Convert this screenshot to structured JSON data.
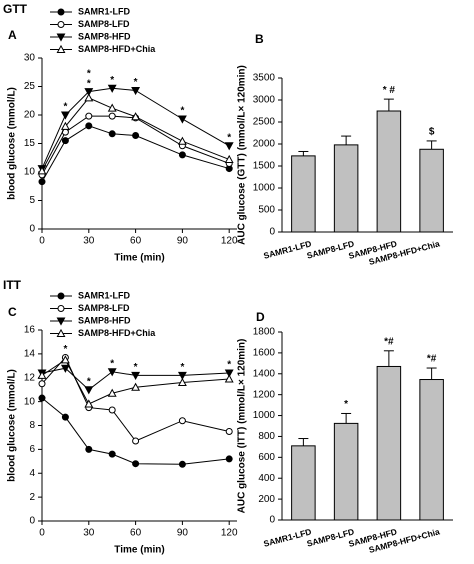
{
  "headings": [
    "GTT",
    "ITT"
  ],
  "chart_data": [
    {
      "type": "line",
      "panel": "A",
      "x_label": "Time (min)",
      "y_label": "blood glucose (mmol/L)",
      "x": [
        0,
        15,
        30,
        45,
        60,
        90,
        120
      ],
      "xlim": [
        0,
        125
      ],
      "xticks": [
        0,
        30,
        60,
        90,
        120
      ],
      "ylim": [
        0,
        30
      ],
      "yticks": [
        0,
        5,
        10,
        15,
        20,
        25,
        30
      ],
      "legend": "upper left",
      "series": [
        {
          "name": "SAMR1-LFD",
          "color": "#000000",
          "marker": "circle",
          "filled": true,
          "values": [
            8.3,
            15.5,
            18.1,
            16.7,
            16.4,
            13.0,
            10.6
          ]
        },
        {
          "name": "SAMP8-LFD",
          "color": "#000000",
          "marker": "circle",
          "filled": false,
          "values": [
            9.5,
            17.0,
            19.8,
            19.8,
            19.5,
            14.6,
            11.5
          ]
        },
        {
          "name": "SAMP8-HFD",
          "color": "#000000",
          "marker": "triangle-down",
          "filled": true,
          "values": [
            10.6,
            20.0,
            24.1,
            24.7,
            24.3,
            19.3,
            14.6
          ]
        },
        {
          "name": "SAMP8-HFD+Chia",
          "color": "#000000",
          "marker": "triangle-up",
          "filled": false,
          "values": [
            10.2,
            18.0,
            23.0,
            21.2,
            19.7,
            15.4,
            12.2
          ]
        }
      ],
      "annotations": [
        {
          "x": 15,
          "text": "*"
        },
        {
          "x": 30,
          "text": "*"
        },
        {
          "x": 30,
          "text": "*"
        },
        {
          "x": 45,
          "text": "*"
        },
        {
          "x": 60,
          "text": "*"
        },
        {
          "x": 90,
          "text": "*"
        },
        {
          "x": 120,
          "text": "*"
        }
      ]
    },
    {
      "type": "bar",
      "panel": "B",
      "y_label": "AUC glucose (GTT) (mmol/L× 120min)",
      "categories": [
        "SAMR1-LFD",
        "SAMP8-LFD",
        "SAMP8-HFD",
        "SAMP8-HFD+Chia"
      ],
      "values": [
        1730,
        1980,
        2750,
        1880
      ],
      "errors": [
        100,
        200,
        270,
        190
      ],
      "color": "#c0c0c0",
      "ylim": [
        0,
        3500
      ],
      "yticks": [
        0,
        500,
        1000,
        1500,
        2000,
        2500,
        3000,
        3500
      ],
      "annotations": [
        null,
        null,
        "* #",
        "$"
      ]
    },
    {
      "type": "line",
      "panel": "C",
      "x_label": "Time (min)",
      "y_label": "blood glucose (mmol/L)",
      "x": [
        0,
        15,
        30,
        45,
        60,
        90,
        120
      ],
      "xlim": [
        0,
        125
      ],
      "xticks": [
        0,
        30,
        60,
        90,
        120
      ],
      "ylim": [
        0,
        16
      ],
      "yticks": [
        0,
        2,
        4,
        6,
        8,
        10,
        12,
        14,
        16
      ],
      "legend": "upper left",
      "series": [
        {
          "name": "SAMR1-LFD",
          "color": "#000000",
          "marker": "circle",
          "filled": true,
          "values": [
            10.3,
            8.7,
            6.0,
            5.6,
            4.8,
            4.75,
            5.2
          ]
        },
        {
          "name": "SAMP8-LFD",
          "color": "#000000",
          "marker": "circle",
          "filled": false,
          "values": [
            11.5,
            13.7,
            9.5,
            9.3,
            6.7,
            8.4,
            7.5
          ]
        },
        {
          "name": "SAMP8-HFD",
          "color": "#000000",
          "marker": "triangle-down",
          "filled": true,
          "values": [
            12.4,
            12.8,
            11.0,
            12.5,
            12.2,
            12.2,
            12.4
          ]
        },
        {
          "name": "SAMP8-HFD+Chia",
          "color": "#000000",
          "marker": "triangle-up",
          "filled": false,
          "values": [
            12.2,
            13.5,
            9.8,
            10.7,
            11.2,
            11.6,
            11.9
          ]
        }
      ],
      "annotations": [
        {
          "x": 15,
          "text": "*"
        },
        {
          "x": 30,
          "text": "*"
        },
        {
          "x": 45,
          "text": "*"
        },
        {
          "x": 60,
          "text": "*"
        },
        {
          "x": 90,
          "text": "*"
        },
        {
          "x": 120,
          "text": "*"
        }
      ]
    },
    {
      "type": "bar",
      "panel": "D",
      "y_label": "AUC glucose (ITT) (mmol/L× 120min)",
      "categories": [
        "SAMR1-LFD",
        "SAMP8-LFD",
        "SAMP8-HFD",
        "SAMP8-HFD+Chia"
      ],
      "values": [
        710,
        925,
        1470,
        1345
      ],
      "errors": [
        70,
        95,
        150,
        110
      ],
      "color": "#c0c0c0",
      "ylim": [
        0,
        1800
      ],
      "yticks": [
        0,
        200,
        400,
        600,
        800,
        1000,
        1200,
        1400,
        1600,
        1800
      ],
      "annotations": [
        null,
        "*",
        "*#",
        "*#"
      ]
    }
  ]
}
